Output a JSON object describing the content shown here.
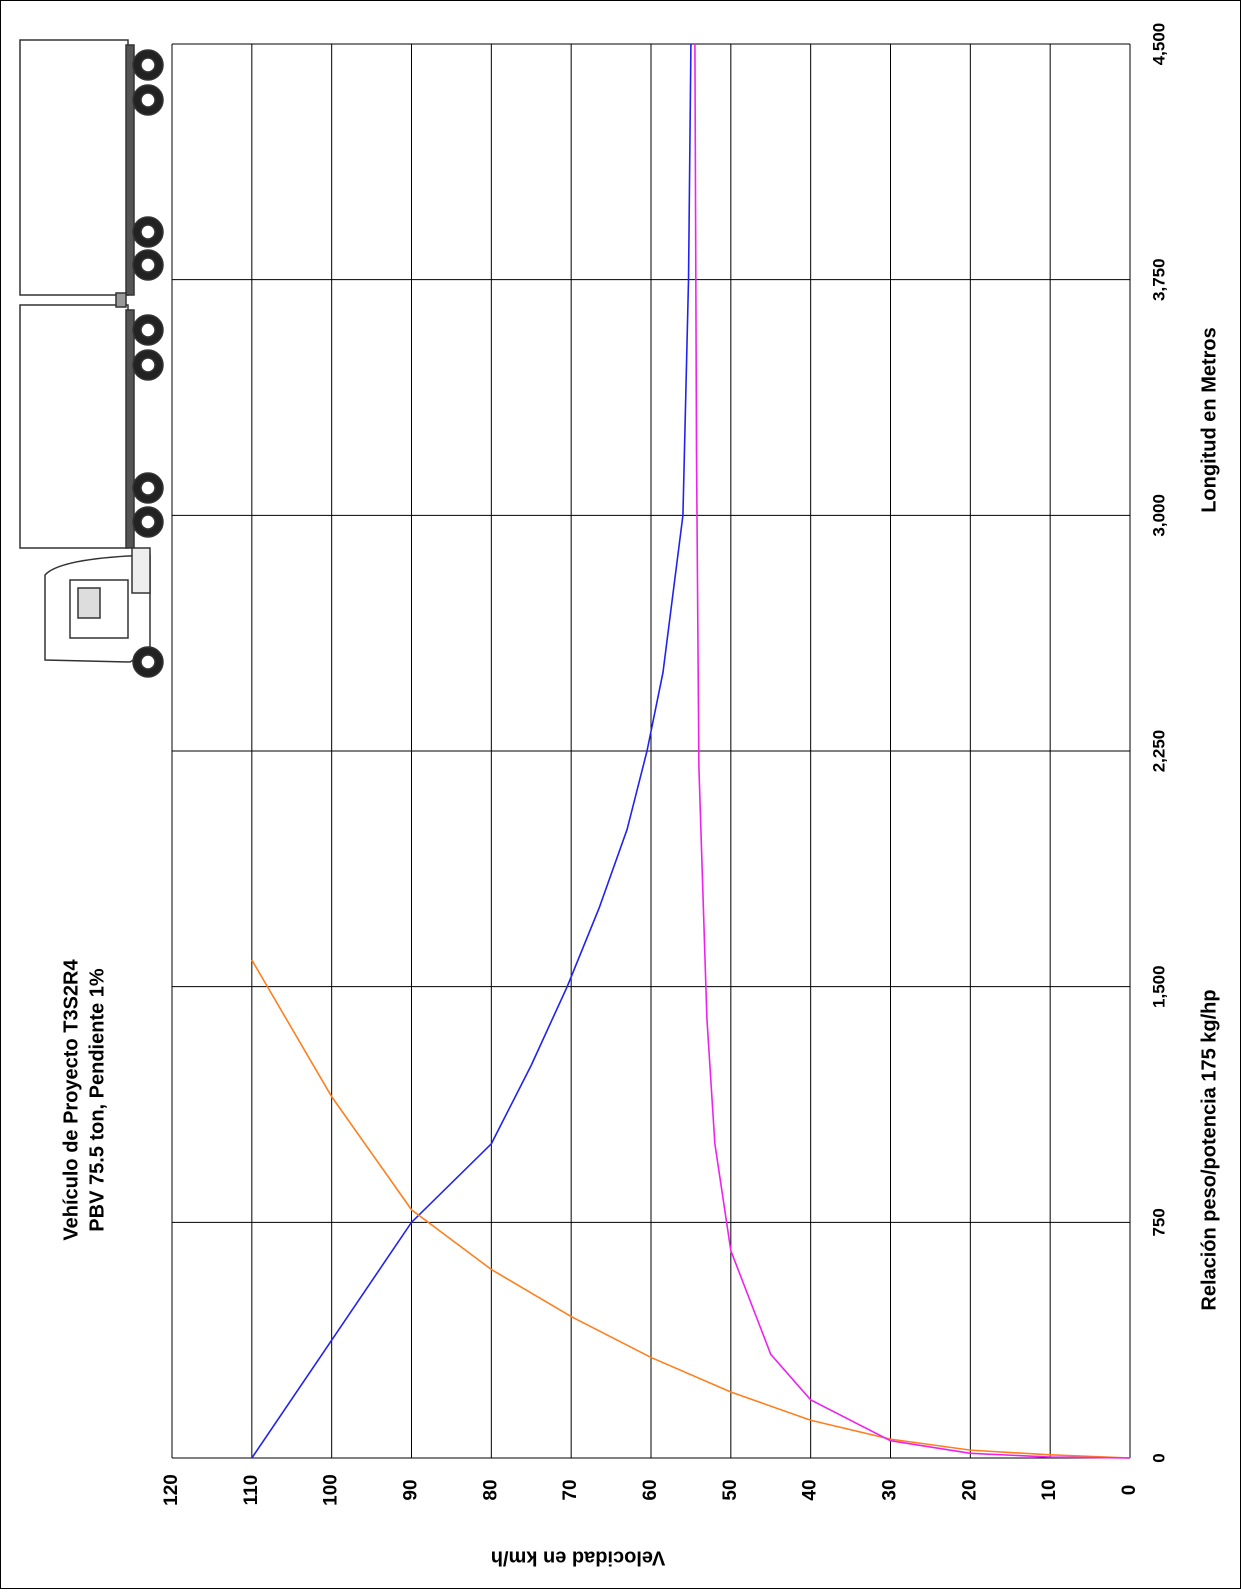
{
  "chart_data": {
    "type": "line",
    "title": "Vehículo de Proyecto T3S2R4",
    "subtitle": "PBV 75.5 ton, Pendiente 1%",
    "x_label": "Longitud en  Metros",
    "y_label": "Velocidad en km/h",
    "annotation": "Relación peso/potencia 175 kg/hp",
    "xlim": [
      0,
      4500
    ],
    "ylim": [
      0,
      120
    ],
    "xticks": [
      0,
      750,
      {
        "value": 1500,
        "label": "1,500"
      },
      {
        "value": 2250,
        "label": "2,250"
      },
      {
        "value": 3000,
        "label": "3,000"
      },
      {
        "value": 3750,
        "label": "3,750"
      },
      {
        "value": 4500,
        "label": "4,500"
      }
    ],
    "yticks": [
      0,
      10,
      20,
      30,
      40,
      50,
      60,
      70,
      80,
      90,
      100,
      110,
      120
    ],
    "grid": true,
    "series": [
      {
        "color": "#2222ee",
        "x": [
          0,
          375,
          750,
          1000,
          1250,
          1500,
          1750,
          2000,
          2250,
          2500,
          3000,
          3750,
          4500
        ],
        "values": [
          110,
          100,
          90,
          80,
          75,
          70.5,
          66.5,
          63,
          60.5,
          58.5,
          56,
          55.3,
          55
        ]
      },
      {
        "color": "#ff7f1e",
        "x": [
          0,
          10,
          25,
          60,
          120,
          210,
          320,
          450,
          600,
          790,
          1150,
          1585
        ],
        "values": [
          0,
          10,
          20,
          30,
          40,
          50,
          60,
          70,
          80,
          90,
          100,
          110
        ]
      },
      {
        "color": "#ee22ee",
        "x": [
          0,
          3,
          15,
          55,
          185,
          330,
          660,
          1000,
          1400,
          2200,
          3200,
          4500
        ],
        "values": [
          0,
          10,
          20,
          30,
          40,
          45,
          50,
          52,
          53,
          54,
          54.3,
          54.5
        ]
      }
    ]
  }
}
